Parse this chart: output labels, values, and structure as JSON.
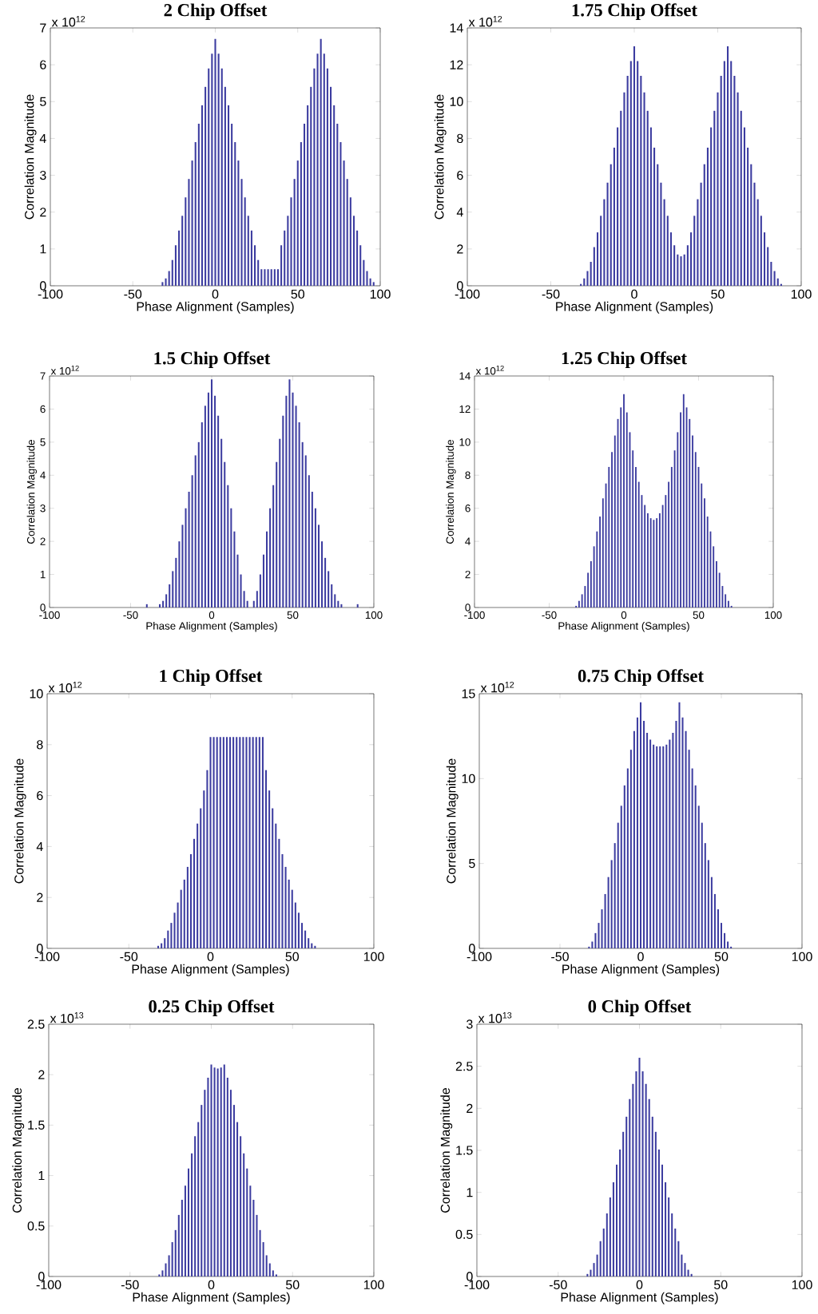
{
  "chart_data": [
    {
      "type": "bar",
      "title": "2 Chip Offset",
      "xlabel": "Phase Alignment (Samples)",
      "ylabel": "Correlation Magnitude",
      "annotations": [
        "x 10$^{12}$"
      ],
      "color": "#3c3ca0",
      "xlim": [
        -100,
        100
      ],
      "ylim": [
        0,
        7
      ],
      "xticks": [
        -100,
        -50,
        0,
        50,
        100
      ],
      "yticks": [
        0,
        1,
        2,
        3,
        4,
        5,
        6,
        7
      ],
      "x": [
        -100,
        -98,
        -96,
        -94,
        -92,
        -90,
        -88,
        -86,
        -84,
        -82,
        -80,
        -78,
        -76,
        -74,
        -72,
        -70,
        -68,
        -66,
        -64,
        -62,
        -60,
        -58,
        -56,
        -54,
        -52,
        -50,
        -48,
        -46,
        -44,
        -42,
        -40,
        -38,
        -36,
        -34,
        -32,
        -30,
        -28,
        -26,
        -24,
        -22,
        -20,
        -18,
        -16,
        -14,
        -12,
        -10,
        -8,
        -6,
        -4,
        -2,
        0,
        2,
        4,
        6,
        8,
        10,
        12,
        14,
        16,
        18,
        20,
        22,
        24,
        26,
        28,
        30,
        32,
        34,
        36,
        38,
        40,
        42,
        44,
        46,
        48,
        50,
        52,
        54,
        56,
        58,
        60,
        62,
        64,
        66,
        68,
        70,
        72,
        74,
        76,
        78,
        80,
        82,
        84,
        86,
        88,
        90,
        92,
        94,
        96,
        98,
        100
      ],
      "values": [
        0,
        0,
        0,
        0,
        0,
        0,
        0,
        0,
        0,
        0,
        0,
        0,
        0,
        0,
        0,
        0,
        0,
        0,
        0,
        0,
        0,
        0,
        0,
        0,
        0,
        0,
        0,
        0,
        0,
        0,
        0,
        0,
        0,
        0,
        0.1,
        0.2,
        0.4,
        0.7,
        1.1,
        1.5,
        1.9,
        2.4,
        2.9,
        3.4,
        3.9,
        4.4,
        4.9,
        5.4,
        5.9,
        6.3,
        6.7,
        6.3,
        5.9,
        5.4,
        4.9,
        4.4,
        3.9,
        3.4,
        2.9,
        2.4,
        1.9,
        1.5,
        1.1,
        0.7,
        0.45,
        0.45,
        0.45,
        0.45,
        0.45,
        0.45,
        1.1,
        1.5,
        1.9,
        2.4,
        2.9,
        3.4,
        3.9,
        4.4,
        4.9,
        5.4,
        5.9,
        6.3,
        6.7,
        6.3,
        5.9,
        5.4,
        4.9,
        4.4,
        3.9,
        3.4,
        2.9,
        2.4,
        1.9,
        1.5,
        1.1,
        0.7,
        0.4,
        0.2,
        0.1,
        0,
        0
      ]
    },
    {
      "type": "bar",
      "title": "1.75 Chip Offset",
      "xlabel": "Phase Alignment (Samples)",
      "ylabel": "Correlation Magnitude",
      "annotations": [
        "x 10$^{12}$"
      ],
      "color": "#3c3ca0",
      "xlim": [
        -100,
        100
      ],
      "ylim": [
        0,
        14
      ],
      "xticks": [
        -100,
        -50,
        0,
        50,
        100
      ],
      "yticks": [
        0,
        2,
        4,
        6,
        8,
        10,
        12,
        14
      ],
      "x": [
        -100,
        -98,
        -96,
        -94,
        -92,
        -90,
        -88,
        -86,
        -84,
        -82,
        -80,
        -78,
        -76,
        -74,
        -72,
        -70,
        -68,
        -66,
        -64,
        -62,
        -60,
        -58,
        -56,
        -54,
        -52,
        -50,
        -48,
        -46,
        -44,
        -42,
        -40,
        -38,
        -36,
        -34,
        -32,
        -30,
        -28,
        -26,
        -24,
        -22,
        -20,
        -18,
        -16,
        -14,
        -12,
        -10,
        -8,
        -6,
        -4,
        -2,
        0,
        2,
        4,
        6,
        8,
        10,
        12,
        14,
        16,
        18,
        20,
        22,
        24,
        26,
        28,
        30,
        32,
        34,
        36,
        38,
        40,
        42,
        44,
        46,
        48,
        50,
        52,
        54,
        56,
        58,
        60,
        62,
        64,
        66,
        68,
        70,
        72,
        74,
        76,
        78,
        80,
        82,
        84,
        86,
        88,
        90,
        92,
        94,
        96,
        98,
        100
      ],
      "values": [
        0,
        0,
        0,
        0,
        0,
        0,
        0,
        0,
        0,
        0,
        0,
        0,
        0,
        0,
        0,
        0,
        0,
        0,
        0,
        0,
        0,
        0,
        0,
        0,
        0,
        0,
        0,
        0,
        0,
        0,
        0,
        0,
        0,
        0,
        0.1,
        0.4,
        0.8,
        1.3,
        2.1,
        2.9,
        3.8,
        4.7,
        5.6,
        6.6,
        7.5,
        8.6,
        9.5,
        10.5,
        11.4,
        12.2,
        13,
        12.2,
        11.4,
        10.5,
        9.5,
        8.6,
        7.5,
        6.6,
        5.6,
        4.7,
        3.8,
        2.9,
        2.2,
        1.7,
        1.6,
        1.7,
        2.2,
        2.9,
        3.8,
        4.7,
        5.6,
        6.6,
        7.5,
        8.6,
        9.5,
        10.5,
        11.4,
        12.2,
        13,
        12.2,
        11.4,
        10.5,
        9.5,
        8.6,
        7.5,
        6.6,
        5.6,
        4.7,
        3.8,
        2.9,
        2.1,
        1.3,
        0.8,
        0.4,
        0.1,
        0,
        0,
        0,
        0,
        0,
        0
      ]
    },
    {
      "type": "bar",
      "title": "1.5 Chip Offset",
      "xlabel": "Phase Alignment (Samples)",
      "ylabel": "Correlation Magnitude",
      "annotations": [
        "x 10$^{12}$"
      ],
      "color": "#3c3ca0",
      "xlim": [
        -100,
        100
      ],
      "ylim": [
        0,
        7
      ],
      "xticks": [
        -100,
        -50,
        0,
        50,
        100
      ],
      "yticks": [
        0,
        1,
        2,
        3,
        4,
        5,
        6,
        7
      ],
      "x": [
        -100,
        -98,
        -96,
        -94,
        -92,
        -90,
        -88,
        -86,
        -84,
        -82,
        -80,
        -78,
        -76,
        -74,
        -72,
        -70,
        -68,
        -66,
        -64,
        -62,
        -60,
        -58,
        -56,
        -54,
        -52,
        -50,
        -48,
        -46,
        -44,
        -42,
        -40,
        -38,
        -36,
        -34,
        -32,
        -30,
        -28,
        -26,
        -24,
        -22,
        -20,
        -18,
        -16,
        -14,
        -12,
        -10,
        -8,
        -6,
        -4,
        -2,
        0,
        2,
        4,
        6,
        8,
        10,
        12,
        14,
        16,
        18,
        20,
        22,
        24,
        26,
        28,
        30,
        32,
        34,
        36,
        38,
        40,
        42,
        44,
        46,
        48,
        50,
        52,
        54,
        56,
        58,
        60,
        62,
        64,
        66,
        68,
        70,
        72,
        74,
        76,
        78,
        80,
        82,
        84,
        86,
        88,
        90,
        92,
        94,
        96,
        98,
        100
      ],
      "values": [
        0,
        0,
        0,
        0,
        0,
        0,
        0,
        0,
        0,
        0,
        0,
        0,
        0,
        0,
        0,
        0,
        0,
        0,
        0,
        0,
        0,
        0,
        0,
        0,
        0,
        0,
        0,
        0,
        0,
        0,
        0.1,
        0,
        0,
        0,
        0.1,
        0.2,
        0.4,
        0.7,
        1.1,
        1.5,
        2.0,
        2.5,
        3.0,
        3.5,
        4.0,
        4.6,
        5.0,
        5.6,
        6.1,
        6.5,
        6.9,
        6.4,
        5.8,
        5.1,
        4.4,
        3.7,
        3.0,
        2.3,
        1.6,
        1.0,
        0.5,
        0.2,
        0,
        0.2,
        0.5,
        1.0,
        1.6,
        2.3,
        3.0,
        3.7,
        4.4,
        5.1,
        5.8,
        6.4,
        6.9,
        6.5,
        6.1,
        5.6,
        5.0,
        4.6,
        4.0,
        3.5,
        3.0,
        2.5,
        2.0,
        1.5,
        1.1,
        0.7,
        0.4,
        0.2,
        0.1,
        0,
        0,
        0,
        0,
        0.1,
        0,
        0,
        0,
        0,
        0
      ]
    },
    {
      "type": "bar",
      "title": "1.25 Chip Offset",
      "xlabel": "Phase Alignment (Samples)",
      "ylabel": "Correlation Magnitude",
      "annotations": [
        "x 10$^{12}$"
      ],
      "color": "#3c3ca0",
      "xlim": [
        -100,
        100
      ],
      "ylim": [
        0,
        14
      ],
      "xticks": [
        -100,
        -50,
        0,
        50,
        100
      ],
      "yticks": [
        0,
        2,
        4,
        6,
        8,
        10,
        12,
        14
      ],
      "x": [
        -100,
        -98,
        -96,
        -94,
        -92,
        -90,
        -88,
        -86,
        -84,
        -82,
        -80,
        -78,
        -76,
        -74,
        -72,
        -70,
        -68,
        -66,
        -64,
        -62,
        -60,
        -58,
        -56,
        -54,
        -52,
        -50,
        -48,
        -46,
        -44,
        -42,
        -40,
        -38,
        -36,
        -34,
        -32,
        -30,
        -28,
        -26,
        -24,
        -22,
        -20,
        -18,
        -16,
        -14,
        -12,
        -10,
        -8,
        -6,
        -4,
        -2,
        0,
        2,
        4,
        6,
        8,
        10,
        12,
        14,
        16,
        18,
        20,
        22,
        24,
        26,
        28,
        30,
        32,
        34,
        36,
        38,
        40,
        42,
        44,
        46,
        48,
        50,
        52,
        54,
        56,
        58,
        60,
        62,
        64,
        66,
        68,
        70,
        72,
        74,
        76,
        78,
        80,
        82,
        84,
        86,
        88,
        90,
        92,
        94,
        96,
        98,
        100
      ],
      "values": [
        0,
        0,
        0,
        0,
        0,
        0,
        0,
        0,
        0,
        0,
        0,
        0,
        0,
        0,
        0,
        0,
        0,
        0,
        0,
        0,
        0,
        0,
        0,
        0,
        0,
        0,
        0,
        0,
        0,
        0,
        0,
        0,
        0,
        0,
        0.1,
        0.4,
        0.8,
        1.3,
        2.1,
        2.8,
        3.7,
        4.6,
        5.5,
        6.6,
        7.5,
        8.5,
        9.4,
        10.4,
        11.4,
        12.1,
        12.9,
        11.8,
        10.6,
        9.5,
        8.5,
        7.6,
        6.8,
        6.2,
        5.7,
        5.4,
        5.3,
        5.4,
        5.7,
        6.2,
        6.8,
        7.6,
        8.5,
        9.5,
        10.6,
        11.8,
        12.9,
        12.1,
        11.4,
        10.4,
        9.4,
        8.5,
        7.5,
        6.6,
        5.5,
        4.6,
        3.7,
        2.8,
        2.1,
        1.3,
        0.8,
        0.4,
        0.1,
        0,
        0,
        0,
        0,
        0,
        0,
        0,
        0,
        0,
        0,
        0,
        0,
        0,
        0
      ]
    },
    {
      "type": "bar",
      "title": "1 Chip Offset",
      "xlabel": "Phase Alignment (Samples)",
      "ylabel": "Correlation Magnitude",
      "annotations": [
        "x 10$^{12}$"
      ],
      "color": "#3c3ca0",
      "xlim": [
        -100,
        100
      ],
      "ylim": [
        0,
        10
      ],
      "xticks": [
        -100,
        -50,
        0,
        50,
        100
      ],
      "yticks": [
        0,
        2,
        4,
        6,
        8,
        10
      ],
      "x": [
        -100,
        -98,
        -96,
        -94,
        -92,
        -90,
        -88,
        -86,
        -84,
        -82,
        -80,
        -78,
        -76,
        -74,
        -72,
        -70,
        -68,
        -66,
        -64,
        -62,
        -60,
        -58,
        -56,
        -54,
        -52,
        -50,
        -48,
        -46,
        -44,
        -42,
        -40,
        -38,
        -36,
        -34,
        -32,
        -30,
        -28,
        -26,
        -24,
        -22,
        -20,
        -18,
        -16,
        -14,
        -12,
        -10,
        -8,
        -6,
        -4,
        -2,
        0,
        2,
        4,
        6,
        8,
        10,
        12,
        14,
        16,
        18,
        20,
        22,
        24,
        26,
        28,
        30,
        32,
        34,
        36,
        38,
        40,
        42,
        44,
        46,
        48,
        50,
        52,
        54,
        56,
        58,
        60,
        62,
        64,
        66,
        68,
        70,
        72,
        74,
        76,
        78,
        80,
        82,
        84,
        86,
        88,
        90,
        92,
        94,
        96,
        98,
        100
      ],
      "values": [
        0,
        0,
        0,
        0,
        0,
        0,
        0,
        0,
        0,
        0,
        0,
        0,
        0,
        0,
        0,
        0,
        0,
        0,
        0,
        0,
        0,
        0,
        0,
        0,
        0,
        0,
        0,
        0,
        0,
        0,
        0,
        0,
        0,
        0,
        0.1,
        0.2,
        0.4,
        0.7,
        1.0,
        1.4,
        1.8,
        2.3,
        2.7,
        3.2,
        3.7,
        4.3,
        4.9,
        5.5,
        6.2,
        7.0,
        8.3,
        8.3,
        8.3,
        8.3,
        8.3,
        8.3,
        8.3,
        8.3,
        8.3,
        8.3,
        8.3,
        8.3,
        8.3,
        8.3,
        8.3,
        8.3,
        8.3,
        7.0,
        6.2,
        5.5,
        4.9,
        4.3,
        3.7,
        3.2,
        2.7,
        2.3,
        1.8,
        1.4,
        1.0,
        0.7,
        0.4,
        0.2,
        0.1,
        0,
        0,
        0,
        0,
        0,
        0,
        0,
        0,
        0,
        0,
        0,
        0,
        0,
        0,
        0,
        0,
        0,
        0
      ]
    },
    {
      "type": "bar",
      "title": "0.75 Chip Offset",
      "xlabel": "Phase Alignment (Samples)",
      "ylabel": "Correlation Magnitude",
      "annotations": [
        "x 10$^{12}$"
      ],
      "color": "#3c3ca0",
      "xlim": [
        -100,
        100
      ],
      "ylim": [
        0,
        15
      ],
      "xticks": [
        -100,
        -50,
        0,
        50,
        100
      ],
      "yticks": [
        0,
        5,
        10,
        15
      ],
      "x": [
        -100,
        -98,
        -96,
        -94,
        -92,
        -90,
        -88,
        -86,
        -84,
        -82,
        -80,
        -78,
        -76,
        -74,
        -72,
        -70,
        -68,
        -66,
        -64,
        -62,
        -60,
        -58,
        -56,
        -54,
        -52,
        -50,
        -48,
        -46,
        -44,
        -42,
        -40,
        -38,
        -36,
        -34,
        -32,
        -30,
        -28,
        -26,
        -24,
        -22,
        -20,
        -18,
        -16,
        -14,
        -12,
        -10,
        -8,
        -6,
        -4,
        -2,
        0,
        2,
        4,
        6,
        8,
        10,
        12,
        14,
        16,
        18,
        20,
        22,
        24,
        26,
        28,
        30,
        32,
        34,
        36,
        38,
        40,
        42,
        44,
        46,
        48,
        50,
        52,
        54,
        56,
        58,
        60,
        62,
        64,
        66,
        68,
        70,
        72,
        74,
        76,
        78,
        80,
        82,
        84,
        86,
        88,
        90,
        92,
        94,
        96,
        98,
        100
      ],
      "values": [
        0,
        0,
        0,
        0,
        0,
        0,
        0,
        0,
        0,
        0,
        0,
        0,
        0,
        0,
        0,
        0,
        0,
        0,
        0,
        0,
        0,
        0,
        0,
        0,
        0,
        0,
        0,
        0,
        0,
        0,
        0,
        0,
        0,
        0,
        0.1,
        0.4,
        0.9,
        1.5,
        2.3,
        3.2,
        4.2,
        5.2,
        6.2,
        7.4,
        8.4,
        9.6,
        10.6,
        11.7,
        12.8,
        13.6,
        14.5,
        13.4,
        12.7,
        12.3,
        12.0,
        11.9,
        11.9,
        11.9,
        12.0,
        12.3,
        12.7,
        13.4,
        14.5,
        13.6,
        12.8,
        11.7,
        10.6,
        9.6,
        8.4,
        7.4,
        6.2,
        5.2,
        4.2,
        3.2,
        2.3,
        1.5,
        0.9,
        0.4,
        0.1,
        0,
        0,
        0,
        0,
        0,
        0,
        0,
        0,
        0,
        0,
        0,
        0,
        0,
        0,
        0,
        0,
        0,
        0,
        0,
        0,
        0,
        0
      ]
    },
    {
      "type": "bar",
      "title": "0.25 Chip Offset",
      "xlabel": "Phase Alignment (Samples)",
      "ylabel": "Correlation Magnitude",
      "annotations": [
        "x 10$^{13}$"
      ],
      "color": "#3c3ca0",
      "xlim": [
        -100,
        100
      ],
      "ylim": [
        0,
        2.5
      ],
      "xticks": [
        -100,
        -50,
        0,
        50,
        100
      ],
      "yticks": [
        0,
        0.5,
        1,
        1.5,
        2,
        2.5
      ],
      "x": [
        -100,
        -98,
        -96,
        -94,
        -92,
        -90,
        -88,
        -86,
        -84,
        -82,
        -80,
        -78,
        -76,
        -74,
        -72,
        -70,
        -68,
        -66,
        -64,
        -62,
        -60,
        -58,
        -56,
        -54,
        -52,
        -50,
        -48,
        -46,
        -44,
        -42,
        -40,
        -38,
        -36,
        -34,
        -32,
        -30,
        -28,
        -26,
        -24,
        -22,
        -20,
        -18,
        -16,
        -14,
        -12,
        -10,
        -8,
        -6,
        -4,
        -2,
        0,
        2,
        4,
        6,
        8,
        10,
        12,
        14,
        16,
        18,
        20,
        22,
        24,
        26,
        28,
        30,
        32,
        34,
        36,
        38,
        40,
        42,
        44,
        46,
        48,
        50,
        52,
        54,
        56,
        58,
        60,
        62,
        64,
        66,
        68,
        70,
        72,
        74,
        76,
        78,
        80,
        82,
        84,
        86,
        88,
        90,
        92,
        94,
        96,
        98,
        100
      ],
      "values": [
        0,
        0,
        0,
        0,
        0,
        0,
        0,
        0,
        0,
        0,
        0,
        0,
        0,
        0,
        0,
        0,
        0,
        0,
        0,
        0,
        0,
        0,
        0,
        0,
        0,
        0,
        0,
        0,
        0,
        0,
        0,
        0,
        0,
        0,
        0.02,
        0.06,
        0.13,
        0.21,
        0.34,
        0.46,
        0.61,
        0.76,
        0.9,
        1.07,
        1.22,
        1.39,
        1.53,
        1.7,
        1.85,
        1.97,
        2.1,
        2.07,
        2.06,
        2.07,
        2.1,
        1.97,
        1.85,
        1.7,
        1.53,
        1.39,
        1.22,
        1.07,
        0.9,
        0.76,
        0.61,
        0.46,
        0.34,
        0.21,
        0.13,
        0.06,
        0.02,
        0,
        0,
        0,
        0,
        0,
        0,
        0,
        0,
        0,
        0,
        0,
        0,
        0,
        0,
        0,
        0,
        0,
        0,
        0,
        0,
        0,
        0,
        0,
        0,
        0,
        0,
        0,
        0,
        0,
        0
      ]
    },
    {
      "type": "bar",
      "title": "0 Chip Offset",
      "xlabel": "Phase Alignment (Samples)",
      "ylabel": "Correlation Magnitude",
      "annotations": [
        "x 10$^{13}$"
      ],
      "color": "#3c3ca0",
      "xlim": [
        -100,
        100
      ],
      "ylim": [
        0,
        3
      ],
      "xticks": [
        -100,
        -50,
        0,
        50,
        100
      ],
      "yticks": [
        0,
        0.5,
        1,
        1.5,
        2,
        2.5,
        3
      ],
      "x": [
        -100,
        -98,
        -96,
        -94,
        -92,
        -90,
        -88,
        -86,
        -84,
        -82,
        -80,
        -78,
        -76,
        -74,
        -72,
        -70,
        -68,
        -66,
        -64,
        -62,
        -60,
        -58,
        -56,
        -54,
        -52,
        -50,
        -48,
        -46,
        -44,
        -42,
        -40,
        -38,
        -36,
        -34,
        -32,
        -30,
        -28,
        -26,
        -24,
        -22,
        -20,
        -18,
        -16,
        -14,
        -12,
        -10,
        -8,
        -6,
        -4,
        -2,
        0,
        2,
        4,
        6,
        8,
        10,
        12,
        14,
        16,
        18,
        20,
        22,
        24,
        26,
        28,
        30,
        32,
        34,
        36,
        38,
        40,
        42,
        44,
        46,
        48,
        50,
        52,
        54,
        56,
        58,
        60,
        62,
        64,
        66,
        68,
        70,
        72,
        74,
        76,
        78,
        80,
        82,
        84,
        86,
        88,
        90,
        92,
        94,
        96,
        98,
        100
      ],
      "values": [
        0,
        0,
        0,
        0,
        0,
        0,
        0,
        0,
        0,
        0,
        0,
        0,
        0,
        0,
        0,
        0,
        0,
        0,
        0,
        0,
        0,
        0,
        0,
        0,
        0,
        0,
        0,
        0,
        0,
        0,
        0,
        0,
        0,
        0,
        0.03,
        0.08,
        0.16,
        0.26,
        0.42,
        0.57,
        0.75,
        0.94,
        1.12,
        1.33,
        1.51,
        1.72,
        1.9,
        2.11,
        2.29,
        2.44,
        2.6,
        2.44,
        2.29,
        2.11,
        1.9,
        1.72,
        1.51,
        1.33,
        1.12,
        0.94,
        0.75,
        0.57,
        0.42,
        0.26,
        0.16,
        0.08,
        0.03,
        0,
        0,
        0,
        0,
        0,
        0,
        0,
        0,
        0,
        0,
        0,
        0,
        0,
        0,
        0,
        0,
        0,
        0,
        0,
        0,
        0,
        0,
        0,
        0,
        0,
        0,
        0,
        0,
        0,
        0,
        0,
        0,
        0,
        0
      ]
    }
  ]
}
